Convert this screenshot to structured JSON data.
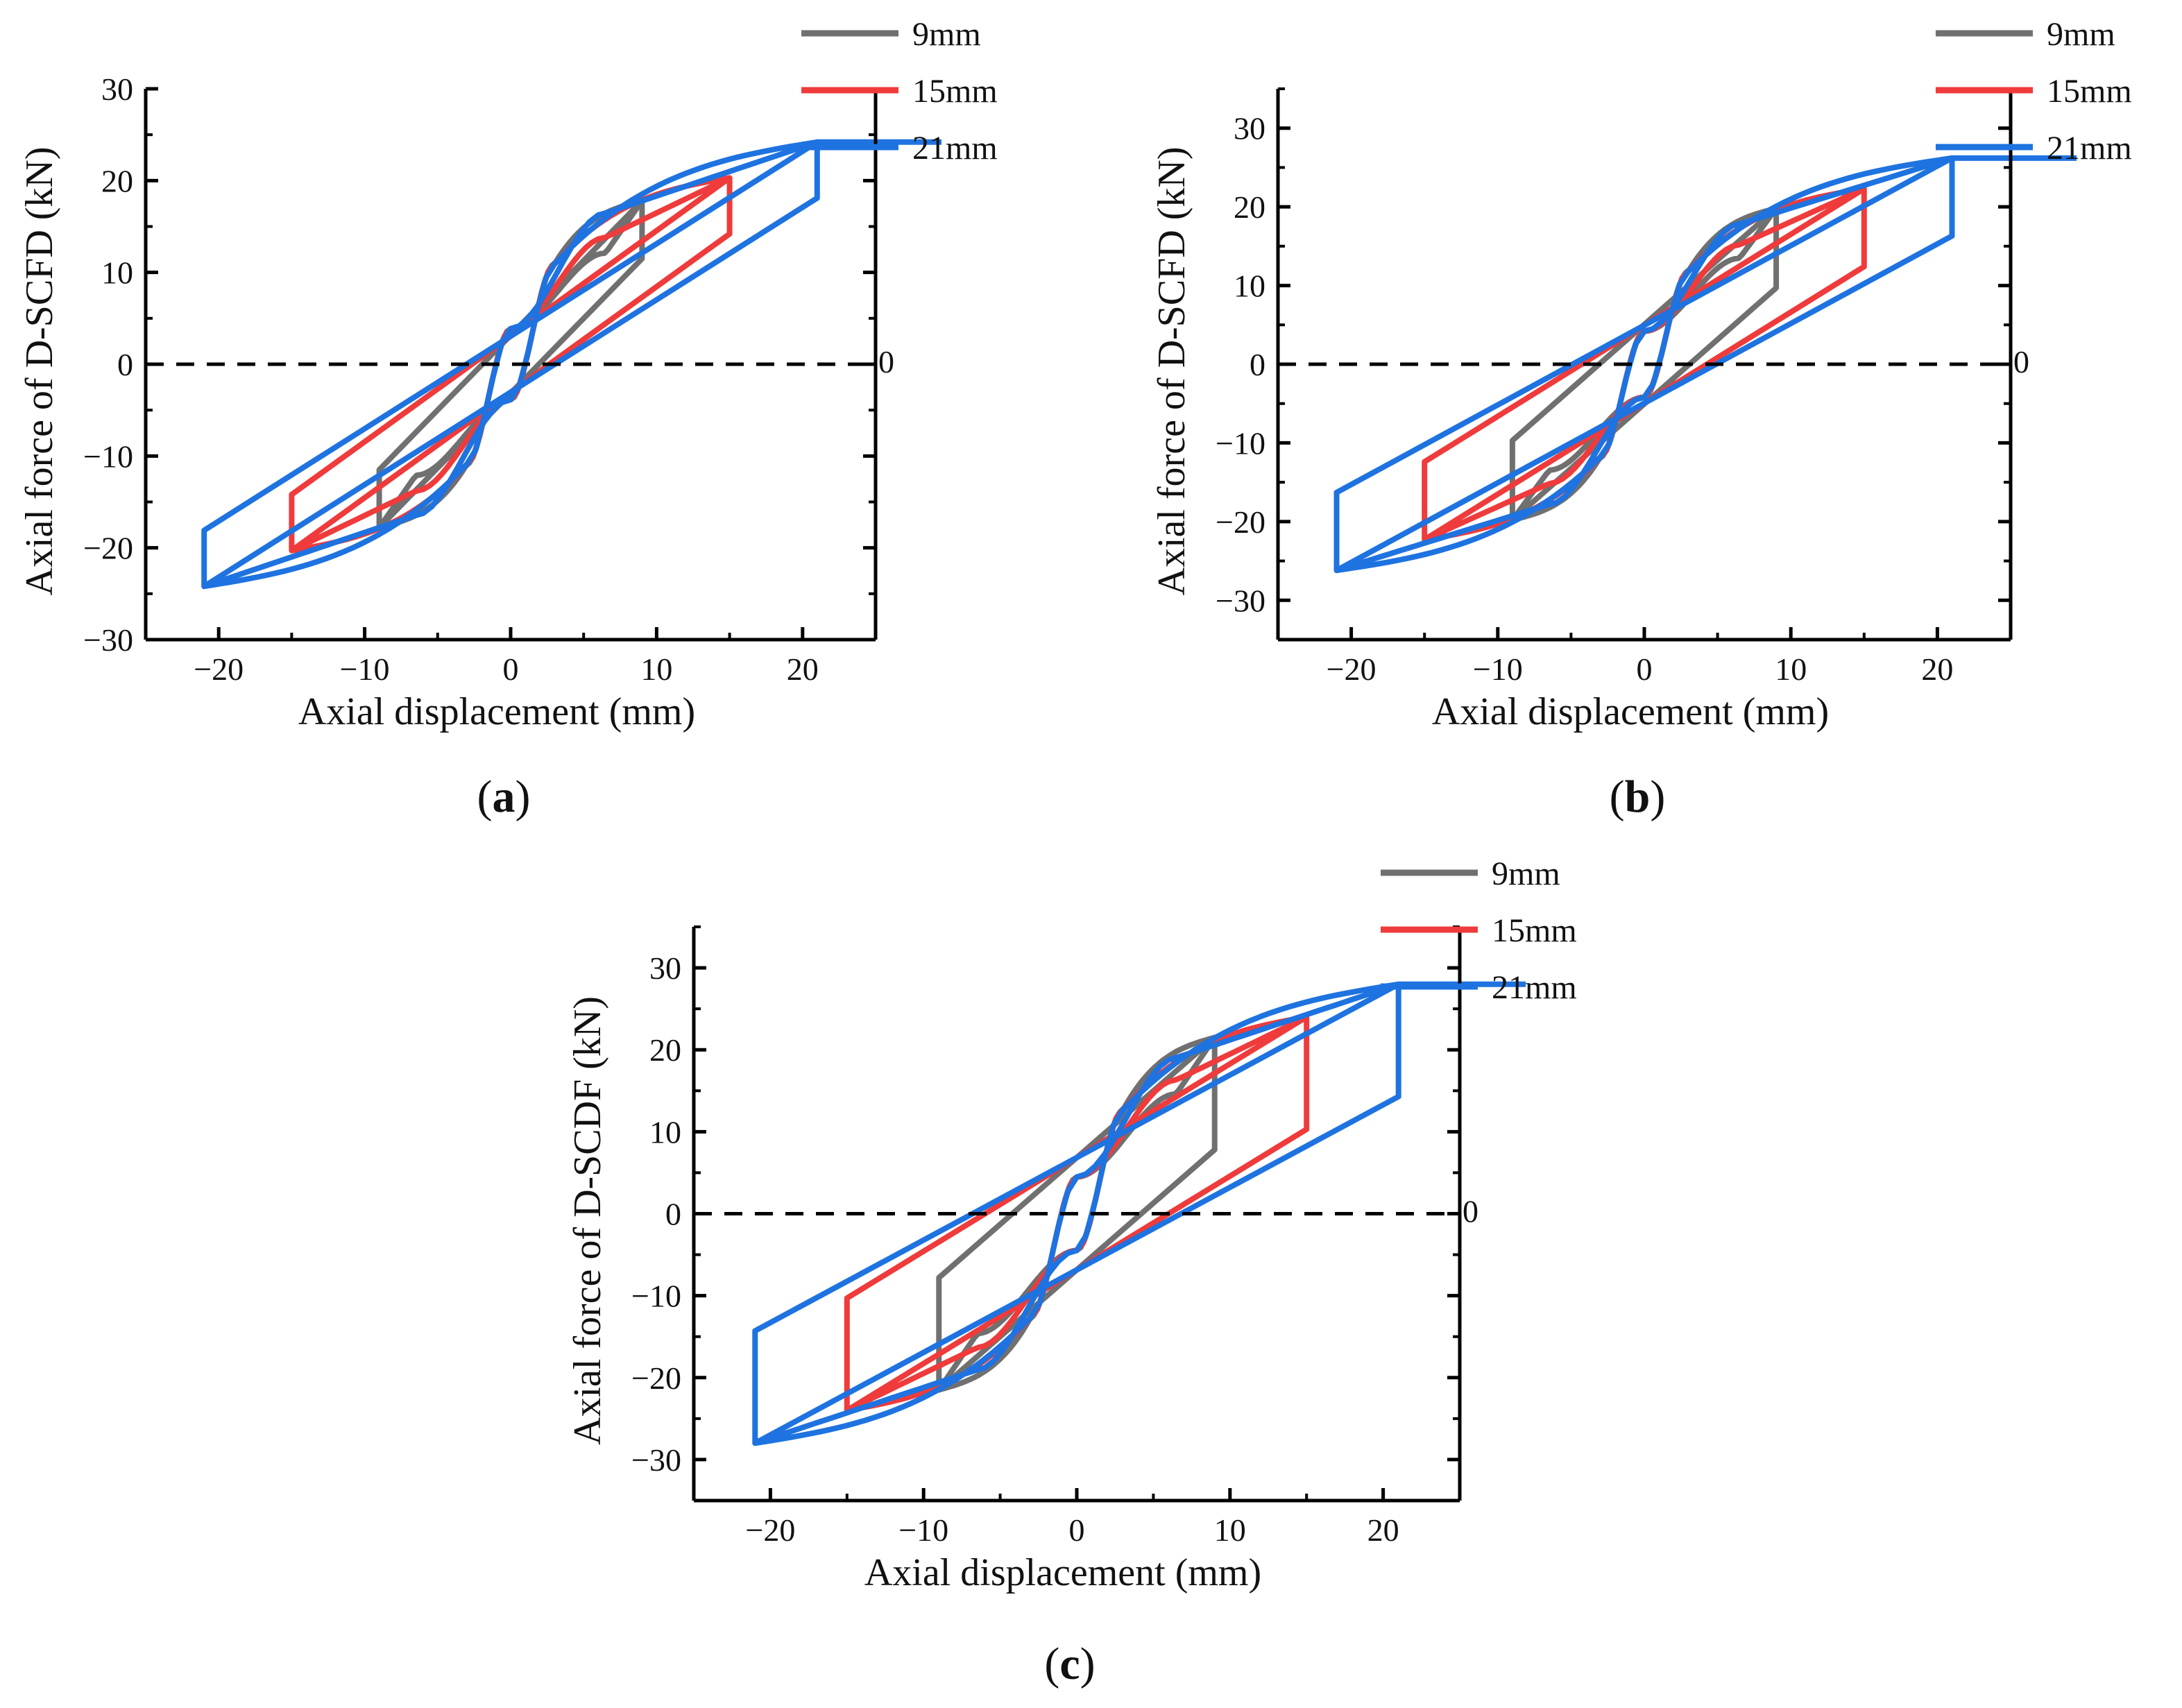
{
  "figure": {
    "series_colors": {
      "9mm": "#707070",
      "15mm": "#ef3b3b",
      "21mm": "#1e73e0"
    }
  },
  "chart_data": [
    {
      "id": "a",
      "type": "line",
      "caption_letter": "a",
      "caption_open": "(",
      "caption_close": ")",
      "xlabel": "Axial displacement (mm)",
      "ylabel": "Axial force of D-SCFD (kN)",
      "xlim": [
        -25,
        25
      ],
      "ylim": [
        -30,
        30
      ],
      "xticks": [
        -20,
        -10,
        0,
        10,
        20
      ],
      "xtick_labels": [
        "−20",
        "−10",
        "0",
        "10",
        "20"
      ],
      "yticks": [
        -30,
        -20,
        -10,
        0,
        10,
        20,
        30
      ],
      "ytick_labels": [
        "−30",
        "−20",
        "−10",
        "0",
        "10",
        "20",
        "30"
      ],
      "zero_line_label": "0",
      "grid": false,
      "legend_position": "top-right",
      "series": [
        {
          "name": "9mm",
          "color": "#707070",
          "amplitude": 9,
          "peak_force": 17.8,
          "elastic_force": 11.5
        },
        {
          "name": "15mm",
          "color": "#ef3b3b",
          "amplitude": 15,
          "peak_force": 20.3,
          "elastic_force": 14.2
        },
        {
          "name": "21mm",
          "color": "#1e73e0",
          "amplitude": 21,
          "peak_force": 24.2,
          "elastic_force": 18.1
        }
      ]
    },
    {
      "id": "b",
      "type": "line",
      "caption_letter": "b",
      "caption_open": "(",
      "caption_close": ")",
      "xlabel": "Axial displacement (mm)",
      "ylabel": "Axial force of D-SCFD (kN)",
      "xlim": [
        -25,
        25
      ],
      "ylim": [
        -35,
        35
      ],
      "xticks": [
        -20,
        -10,
        0,
        10,
        20
      ],
      "xtick_labels": [
        "−20",
        "−10",
        "0",
        "10",
        "20"
      ],
      "yticks": [
        -30,
        -20,
        -10,
        0,
        10,
        20,
        30
      ],
      "ytick_labels": [
        "−30",
        "−20",
        "−10",
        "0",
        "10",
        "20",
        "30"
      ],
      "zero_line_label": "0",
      "grid": false,
      "legend_position": "top-right",
      "series": [
        {
          "name": "9mm",
          "color": "#707070",
          "amplitude": 9,
          "peak_force": 19.8,
          "elastic_force": 9.7
        },
        {
          "name": "15mm",
          "color": "#ef3b3b",
          "amplitude": 15,
          "peak_force": 22.3,
          "elastic_force": 12.4
        },
        {
          "name": "21mm",
          "color": "#1e73e0",
          "amplitude": 21,
          "peak_force": 26.2,
          "elastic_force": 16.3
        }
      ]
    },
    {
      "id": "c",
      "type": "line",
      "caption_letter": "c",
      "caption_open": "(",
      "caption_close": ")",
      "xlabel": "Axial displacement (mm)",
      "ylabel": "Axial force of D-SCDF (kN)",
      "xlim": [
        -25,
        25
      ],
      "ylim": [
        -35,
        35
      ],
      "xticks": [
        -20,
        -10,
        0,
        10,
        20
      ],
      "xtick_labels": [
        "−20",
        "−10",
        "0",
        "10",
        "20"
      ],
      "yticks": [
        -30,
        -20,
        -10,
        0,
        10,
        20,
        30
      ],
      "ytick_labels": [
        "−30",
        "−20",
        "−10",
        "0",
        "10",
        "20",
        "30"
      ],
      "zero_line_label": "0",
      "grid": false,
      "legend_position": "top-right",
      "series": [
        {
          "name": "9mm",
          "color": "#707070",
          "amplitude": 9,
          "peak_force": 21.5,
          "elastic_force": 7.8
        },
        {
          "name": "15mm",
          "color": "#ef3b3b",
          "amplitude": 15,
          "peak_force": 24.0,
          "elastic_force": 10.3
        },
        {
          "name": "21mm",
          "color": "#1e73e0",
          "amplitude": 21,
          "peak_force": 28.0,
          "elastic_force": 14.3
        }
      ]
    }
  ]
}
